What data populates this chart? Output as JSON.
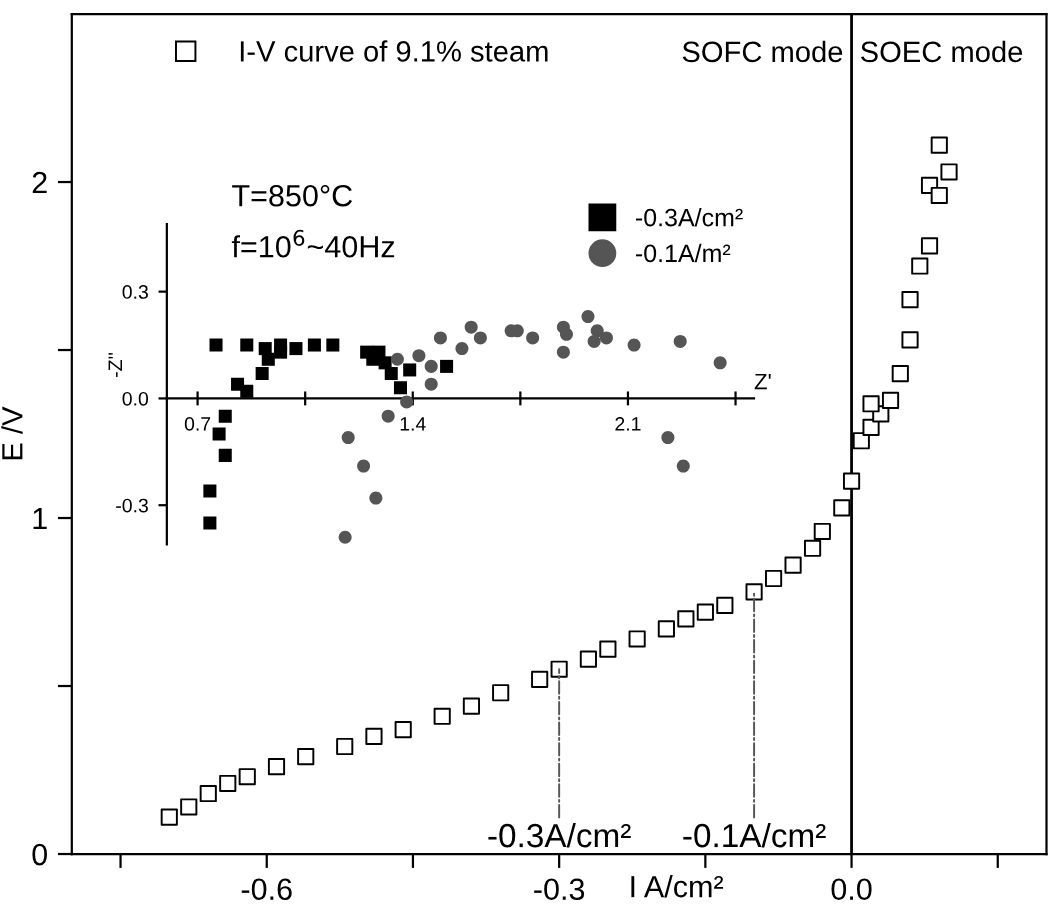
{
  "chart_data": [
    {
      "type": "scatter",
      "xlabel": "I A/cm²",
      "ylabel": "E /V",
      "marker": "square",
      "legend": "top left",
      "grid": false,
      "xlim": [
        -0.8,
        0.2
      ],
      "ylim": [
        0,
        2.5
      ],
      "xticks": [
        {
          "value": -0.75,
          "label": null
        },
        {
          "value": -0.6,
          "label": "-0.6"
        },
        {
          "value": -0.45,
          "label": null
        },
        {
          "value": -0.3,
          "label": "-0.3"
        },
        {
          "value": -0.15,
          "label": null
        },
        {
          "value": 0,
          "label": "0.0"
        },
        {
          "value": 0.15,
          "label": null
        }
      ],
      "yticks": [
        0,
        {
          "value": 0.5,
          "label": null
        },
        1,
        {
          "value": 1.5,
          "label": null
        },
        2
      ],
      "ref_lines": [
        {
          "axis": "x",
          "value": 0,
          "color": "#000000",
          "line_style": "solid"
        }
      ],
      "annotations": [
        "SOFC mode",
        "SOEC mode",
        {
          "text": "-0.3A/cm²",
          "x": -0.3,
          "y": 0.55
        },
        {
          "text": "-0.1A/cm²",
          "x": -0.1,
          "y": 0.78
        }
      ],
      "series": [
        {
          "name": "I-V curve of 9.1% steam",
          "color": "#000000",
          "x": [
            -0.7,
            -0.68,
            -0.66,
            -0.64,
            -0.62,
            -0.59,
            -0.56,
            -0.52,
            -0.49,
            -0.46,
            -0.42,
            -0.39,
            -0.36,
            -0.32,
            -0.3,
            -0.27,
            -0.25,
            -0.22,
            -0.19,
            -0.17,
            -0.15,
            -0.13,
            -0.1,
            -0.08,
            -0.06,
            -0.04,
            -0.03,
            -0.01,
            0.0,
            0.01,
            0.02,
            0.03,
            0.04,
            0.05,
            0.06,
            0.06,
            0.07,
            0.08,
            0.02,
            0.08,
            0.09,
            0.09,
            0.1
          ],
          "values": [
            0.11,
            0.14,
            0.18,
            0.21,
            0.23,
            0.26,
            0.29,
            0.32,
            0.35,
            0.37,
            0.41,
            0.44,
            0.48,
            0.52,
            0.55,
            0.58,
            0.61,
            0.64,
            0.67,
            0.7,
            0.72,
            0.74,
            0.78,
            0.82,
            0.86,
            0.91,
            0.96,
            1.03,
            1.11,
            1.23,
            1.27,
            1.31,
            1.35,
            1.43,
            1.53,
            1.65,
            1.75,
            1.81,
            1.34,
            1.99,
            2.11,
            1.96,
            2.03
          ]
        }
      ]
    },
    {
      "type": "scatter",
      "xlabel": "Z'",
      "ylabel": "-Z''",
      "legend": "top right",
      "grid": false,
      "xlim": [
        0.6,
        2.51
      ],
      "ylim": [
        -0.41,
        0.49
      ],
      "xticks": [
        {
          "value": 0.7,
          "label": "0.7"
        },
        {
          "value": 1.05,
          "label": null
        },
        {
          "value": 1.4,
          "label": "1.4"
        },
        {
          "value": 1.75,
          "label": null
        },
        {
          "value": 2.1,
          "label": "2.1"
        },
        {
          "value": 2.45,
          "label": null
        }
      ],
      "yticks": [
        -0.3,
        {
          "value": 0,
          "label": "0.0"
        },
        0.3
      ],
      "annotations": [
        "T=850°C",
        "f=10$^{6}$~40Hz"
      ],
      "series": [
        {
          "name": "-0.3A/cm²",
          "color": "#000000",
          "marker": "square",
          "x": [
            0.76,
            0.86,
            0.83,
            0.86,
            0.91,
            0.92,
            0.93,
            0.97,
            0.97,
            1.02,
            1.08,
            1.14,
            1.25,
            1.27,
            1.29,
            1.31,
            1.33,
            1.36,
            1.39,
            1.51,
            0.79,
            0.77,
            0.79,
            0.74,
            0.74
          ],
          "values": [
            0.15,
            0.15,
            0.04,
            0.02,
            0.07,
            0.14,
            0.11,
            0.15,
            0.13,
            0.14,
            0.15,
            0.15,
            0.13,
            0.11,
            0.13,
            0.1,
            0.07,
            0.03,
            0.08,
            0.09,
            -0.05,
            -0.1,
            -0.16,
            -0.26,
            -0.35
          ]
        },
        {
          "name": "-0.1A/m²",
          "color": "#555555",
          "marker": "circle",
          "x": [
            1.35,
            1.38,
            1.42,
            1.46,
            1.46,
            1.49,
            1.56,
            1.59,
            1.62,
            1.72,
            1.74,
            1.79,
            1.89,
            1.9,
            1.89,
            1.97,
            2.0,
            1.99,
            2.03,
            2.12,
            2.27,
            2.4,
            1.32,
            1.19,
            2.23,
            1.24,
            1.28,
            1.18,
            2.28
          ],
          "values": [
            0.11,
            -0.01,
            0.12,
            0.09,
            0.04,
            0.17,
            0.14,
            0.2,
            0.17,
            0.19,
            0.19,
            0.17,
            0.2,
            0.18,
            0.13,
            0.23,
            0.19,
            0.16,
            0.17,
            0.15,
            0.16,
            0.1,
            -0.05,
            -0.11,
            -0.11,
            -0.19,
            -0.28,
            -0.39,
            -0.19
          ]
        }
      ]
    }
  ]
}
